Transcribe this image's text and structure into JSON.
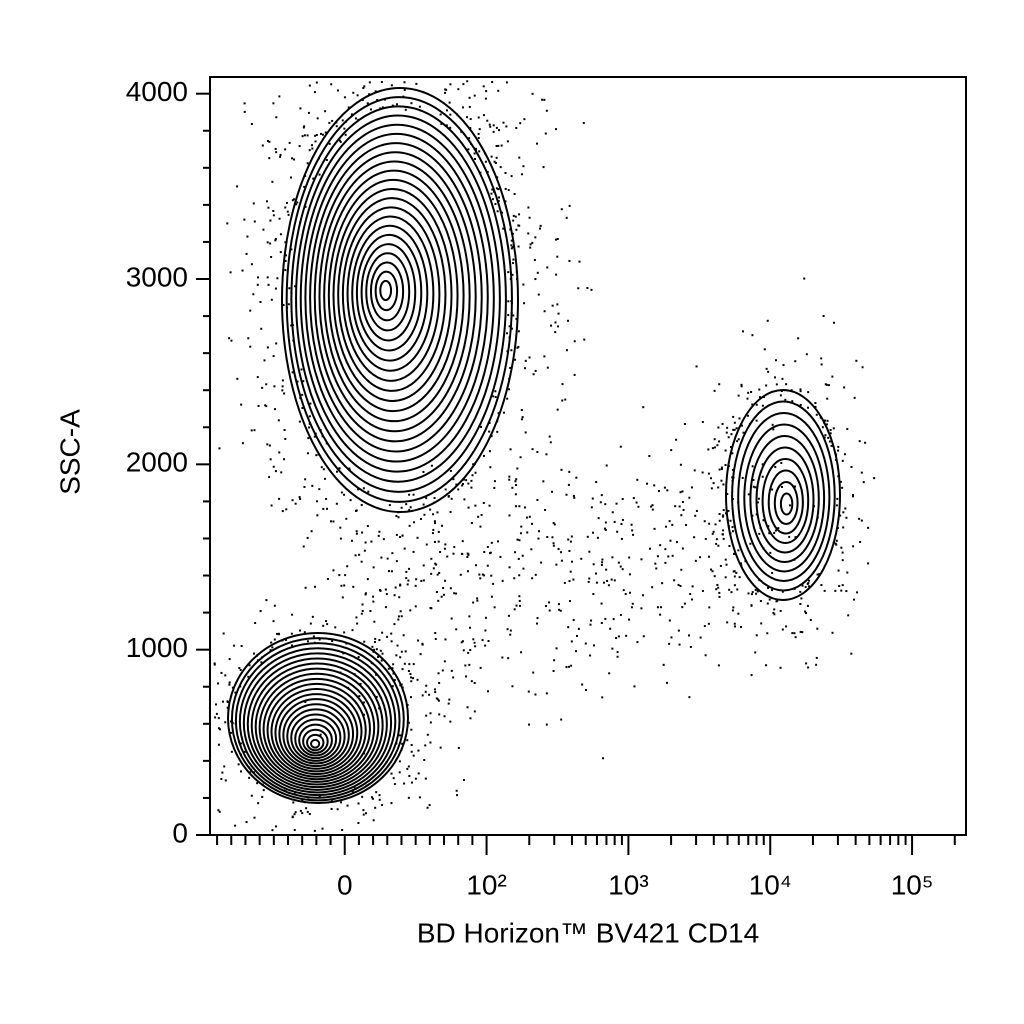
{
  "chart_data": {
    "type": "contour",
    "x_label": "BD Horizon™ BV421 CD14",
    "y_label": "SSC-A",
    "x_scale": "biexponential",
    "xlim": [
      -95,
      240000
    ],
    "xticks": [
      0,
      {
        "value": 100,
        "label": "10²"
      },
      {
        "value": 1000,
        "label": "10³"
      },
      {
        "value": 10000,
        "label": "10⁴"
      },
      {
        "value": 100000,
        "label": "10⁵"
      }
    ],
    "xminorticks": [
      -90,
      -80,
      -70,
      -60,
      -50,
      -40,
      -30,
      -20,
      -10,
      10,
      20,
      30,
      40,
      50,
      60,
      70,
      80,
      90,
      200,
      300,
      400,
      500,
      600,
      700,
      800,
      900,
      2000,
      3000,
      4000,
      5000,
      6000,
      7000,
      8000,
      9000,
      20000,
      30000,
      40000,
      50000,
      60000,
      70000,
      80000,
      90000,
      200000
    ],
    "ylim": [
      0,
      4090
    ],
    "yticks": [
      0,
      1000,
      2000,
      3000,
      4000
    ],
    "yminorticks": [
      200,
      400,
      600,
      800,
      1200,
      1400,
      1600,
      1800,
      2200,
      2400,
      2600,
      2800,
      3200,
      3400,
      3600,
      3800
    ],
    "color": "#000000"
  }
}
